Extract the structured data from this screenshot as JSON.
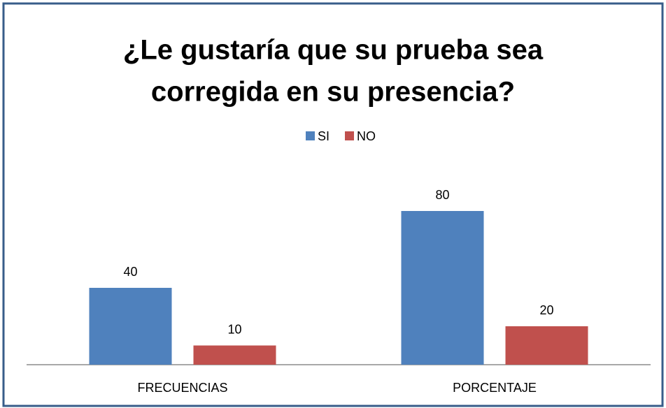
{
  "chart_data": {
    "type": "bar",
    "title": [
      "¿Le gustaría que su prueba sea",
      "corregida en su presencia?"
    ],
    "categories": [
      "FRECUENCIAS",
      "PORCENTAJE"
    ],
    "series": [
      {
        "name": "SI",
        "color": "#4f81bd",
        "values": [
          40,
          80
        ]
      },
      {
        "name": "NO",
        "color": "#c0504d",
        "values": [
          10,
          20
        ]
      }
    ],
    "legend": "top"
  }
}
